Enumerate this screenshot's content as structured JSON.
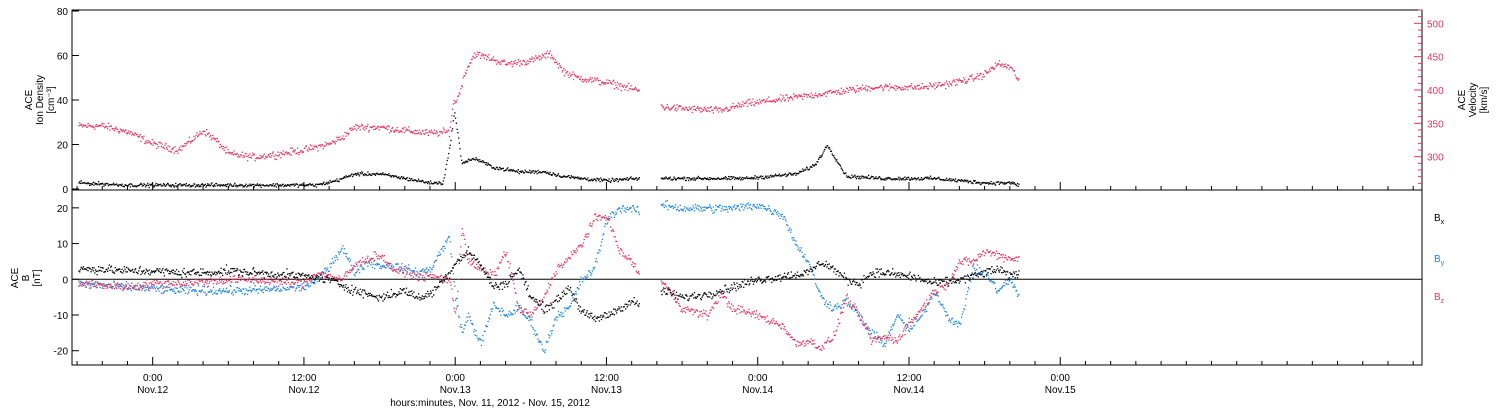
{
  "colors": {
    "black": "#000000",
    "pink": "#e8335f",
    "blue": "#1a84e0"
  },
  "xaxis": {
    "title": "hours:minutes, Nov. 11, 2012 - Nov. 15, 2012",
    "range_hours": [
      -6.4,
      100.7
    ],
    "ticks": [
      {
        "hours": 0,
        "time": "0:00",
        "date": "Nov.12"
      },
      {
        "hours": 12,
        "time": "12:00",
        "date": "Nov.12"
      },
      {
        "hours": 24,
        "time": "0:00",
        "date": "Nov.13"
      },
      {
        "hours": 36,
        "time": "12:00",
        "date": "Nov.13"
      },
      {
        "hours": 48,
        "time": "0:00",
        "date": "Nov.14"
      },
      {
        "hours": 60,
        "time": "12:00",
        "date": "Nov.14"
      },
      {
        "hours": 72,
        "time": "0:00",
        "date": "Nov.15"
      }
    ]
  },
  "chart_data": [
    {
      "type": "scatter",
      "panel": "plasma",
      "ylabel_left": [
        "ACE",
        "Ion Density",
        "[cm⁻³]"
      ],
      "ylabel_right": [
        "ACE",
        "Velocity",
        "[km/s]"
      ],
      "ylim_left": [
        0,
        80
      ],
      "ylim_right": [
        250,
        520
      ],
      "yticks_left": [
        "0",
        "20",
        "40",
        "60",
        "80"
      ],
      "yticks_right": [
        "300",
        "350",
        "400",
        "450",
        "500"
      ],
      "yticks_left_values": [
        0,
        20,
        40,
        60,
        80
      ],
      "yticks_right_values": [
        300,
        350,
        400,
        450,
        500
      ],
      "data_gap_hours": [
        38.6,
        40.3
      ],
      "series": [
        {
          "axis": "left",
          "color": "black",
          "x": [
            -5.9,
            -2,
            2,
            6,
            10,
            13,
            14.5,
            16,
            18,
            20,
            21,
            22,
            23,
            23.5,
            23.9,
            24.5,
            25.5,
            27,
            29,
            31,
            32.5,
            34,
            36,
            38.5,
            40.5,
            43,
            45,
            47,
            49,
            51,
            52.5,
            53.5,
            55,
            58,
            62,
            64,
            66,
            68,
            68.7
          ],
          "y": [
            3,
            2,
            2,
            2,
            2,
            2,
            4,
            7,
            7,
            5,
            4,
            3,
            3,
            18,
            35,
            12,
            14,
            10,
            8,
            8,
            6,
            5,
            4,
            5,
            5,
            5,
            5,
            5,
            6,
            7,
            11,
            20,
            6,
            5,
            5,
            4,
            3,
            3,
            2
          ]
        },
        {
          "axis": "right",
          "color": "pink",
          "x": [
            -5.9,
            -4,
            -2,
            0,
            2,
            3,
            4,
            5,
            6,
            8,
            10,
            12,
            14,
            15,
            16,
            18,
            20,
            22,
            23.5,
            23.8,
            24.2,
            24.8,
            25.5,
            26.5,
            28,
            30,
            31.5,
            32.5,
            33.5,
            35,
            36.5,
            38.5,
            40.5,
            43,
            45,
            47,
            49,
            51,
            53,
            55,
            57,
            59,
            61,
            63,
            65,
            66,
            67,
            68,
            68.7
          ],
          "y": [
            347,
            347,
            338,
            320,
            311,
            325,
            340,
            325,
            305,
            300,
            305,
            311,
            320,
            330,
            345,
            345,
            340,
            336,
            338,
            380,
            390,
            430,
            455,
            450,
            440,
            445,
            455,
            430,
            420,
            415,
            410,
            400,
            375,
            372,
            370,
            380,
            385,
            390,
            395,
            400,
            405,
            405,
            405,
            410,
            418,
            425,
            440,
            435,
            415
          ]
        }
      ]
    },
    {
      "type": "scatter",
      "panel": "magnetic-field",
      "ylabel_left": [
        "ACE",
        "B",
        "[nT]"
      ],
      "ylim": [
        -24,
        25
      ],
      "yticks": [
        "-20",
        "-10",
        "0",
        "10",
        "20"
      ],
      "yticks_values": [
        -20,
        -10,
        0,
        10,
        20
      ],
      "zero_line": true,
      "legend_position": "right",
      "data_gap_hours": [
        38.6,
        40.3
      ],
      "series": [
        {
          "name": "Bx",
          "color": "black",
          "x": [
            -5.9,
            -4,
            -2,
            0,
            2,
            4,
            6,
            8,
            10,
            12,
            14,
            16,
            17,
            18,
            19,
            20,
            21,
            22,
            23.5,
            24,
            25,
            26,
            27,
            28,
            29,
            30,
            31,
            32,
            33,
            34,
            35,
            36,
            37,
            38,
            38.5,
            40.5,
            42,
            44,
            46,
            47,
            48,
            50,
            52,
            53,
            54,
            55,
            56,
            57,
            58,
            60,
            62,
            64,
            66,
            67,
            68,
            68.7
          ],
          "y": [
            3,
            3,
            2.5,
            2.5,
            2,
            2,
            2.5,
            2,
            1.5,
            1,
            0,
            -3,
            -4,
            -5,
            -4,
            -3,
            -5,
            -4,
            2,
            5,
            8,
            4,
            -2,
            -1,
            3,
            -5,
            -8,
            -6,
            -2,
            -9,
            -11,
            -10,
            -8,
            -6,
            -7,
            -3,
            -5,
            -4,
            -2,
            -1,
            0,
            1,
            2,
            5,
            3,
            0,
            -1,
            2,
            2,
            1,
            -1,
            0,
            2,
            3,
            1,
            2
          ]
        },
        {
          "name": "By",
          "color": "blue",
          "x": [
            -5.9,
            -4,
            -2,
            0,
            2,
            4,
            6,
            8,
            10,
            12,
            13,
            14,
            15,
            16,
            17,
            18,
            19,
            20,
            21,
            22,
            23.5,
            24,
            24.5,
            25,
            26,
            27,
            28,
            29,
            30,
            31,
            32,
            33,
            34,
            35,
            36,
            37,
            38,
            38.5,
            40.5,
            42,
            44,
            46,
            48,
            50,
            51,
            52,
            53,
            54,
            55,
            56,
            57,
            58,
            59,
            60,
            61,
            62,
            63,
            64,
            65,
            66,
            67,
            68,
            68.7
          ],
          "y": [
            -1,
            -1.5,
            -2,
            -2.5,
            -3,
            -3,
            -3,
            -3,
            -2.5,
            -2,
            0,
            4,
            9,
            2,
            5,
            4,
            4,
            3,
            2,
            3,
            12,
            -5,
            -15,
            -10,
            -18,
            -7,
            -10,
            -8,
            -12,
            -20,
            -10,
            -8,
            0,
            3,
            17,
            20,
            20,
            19,
            21,
            20,
            20,
            20,
            21,
            18,
            10,
            5,
            -5,
            -8,
            -6,
            -10,
            -15,
            -18,
            -10,
            -14,
            -10,
            -3,
            -10,
            -13,
            3,
            2,
            -3,
            0,
            -5
          ]
        },
        {
          "name": "Bz",
          "color": "pink",
          "x": [
            -5.9,
            -4,
            -2,
            0,
            2,
            4,
            6,
            8,
            10,
            12,
            13,
            14,
            15,
            16,
            17,
            18,
            19,
            20,
            21,
            22,
            23.5,
            24,
            24.5,
            25,
            26,
            27,
            28,
            29,
            30,
            31,
            32,
            33,
            34,
            35,
            36,
            37,
            38,
            38.5,
            40.5,
            42,
            44,
            45,
            46,
            47,
            48,
            50,
            51,
            52,
            53,
            54,
            55,
            56,
            57,
            58,
            59,
            60,
            61,
            62,
            63,
            64,
            65,
            66,
            67,
            68,
            68.7
          ],
          "y": [
            -1,
            -1.5,
            -2,
            -1,
            -1,
            -0.5,
            0,
            0,
            -0.5,
            -1,
            2,
            1,
            0,
            4,
            6,
            7,
            3,
            2,
            1,
            1,
            0,
            -10,
            15,
            5,
            3,
            1,
            8,
            -8,
            -10,
            -5,
            3,
            6,
            10,
            17,
            18,
            8,
            5,
            2,
            -1,
            -8,
            -10,
            -4,
            -8,
            -9,
            -10,
            -13,
            -18,
            -17,
            -19,
            -16,
            -5,
            -10,
            -17,
            -16,
            -17,
            -12,
            -8,
            -3,
            -1,
            5,
            5,
            8,
            7,
            6,
            6
          ]
        }
      ],
      "legend": [
        {
          "label": "B",
          "sub": "x",
          "color": "black"
        },
        {
          "label": "B",
          "sub": "y",
          "color": "blue"
        },
        {
          "label": "B",
          "sub": "z",
          "color": "pink"
        }
      ]
    }
  ]
}
